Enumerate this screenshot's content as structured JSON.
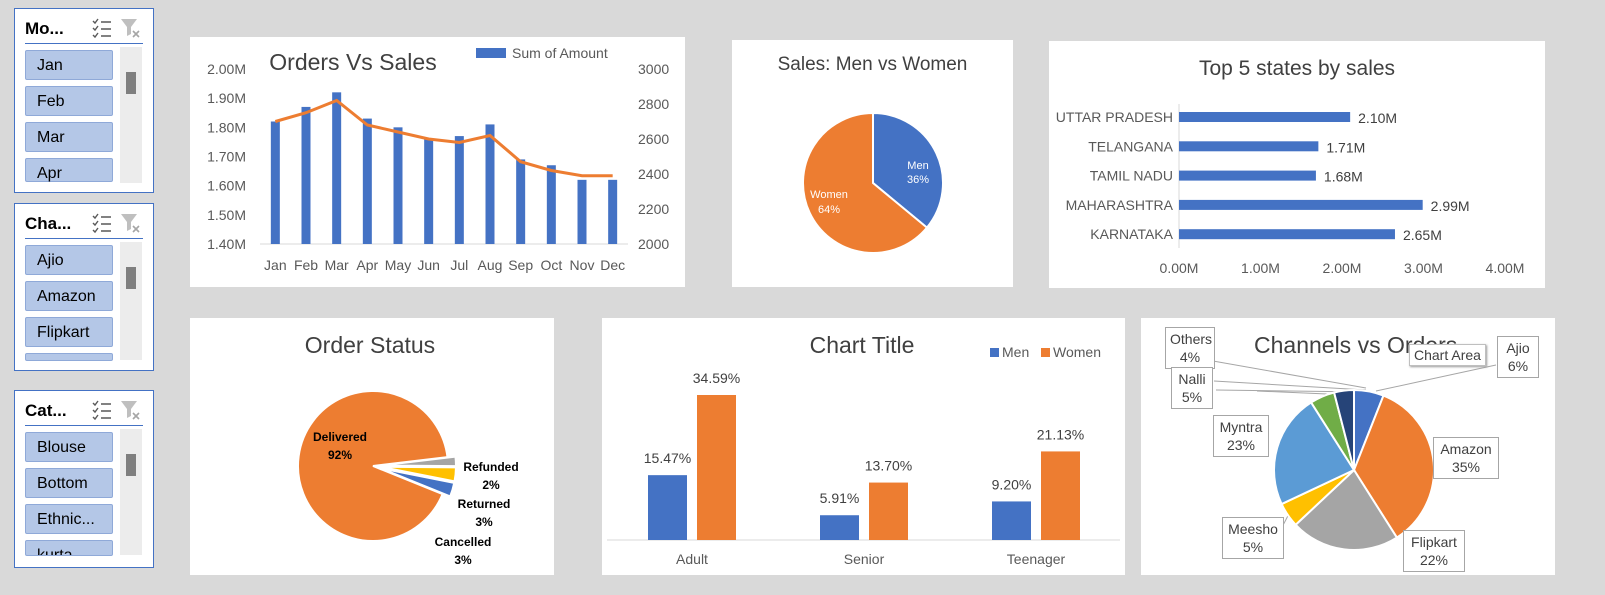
{
  "slicers": {
    "month": {
      "title": "Mo...",
      "items": [
        "Jan",
        "Feb",
        "Mar",
        "Apr"
      ]
    },
    "channel": {
      "title": "Cha...",
      "items": [
        "Ajio",
        "Amazon",
        "Flipkart",
        ""
      ]
    },
    "category": {
      "title": "Cat...",
      "items": [
        "Blouse",
        "Bottom",
        "Ethnic...",
        "kurta"
      ]
    }
  },
  "orders_vs_sales": {
    "title": "Orders Vs Sales",
    "legend": "Sum of Amount",
    "left_ticks": [
      "2.00M",
      "1.90M",
      "1.80M",
      "1.70M",
      "1.60M",
      "1.50M",
      "1.40M"
    ],
    "right_ticks": [
      "3000",
      "2800",
      "2600",
      "2400",
      "2200",
      "2000"
    ]
  },
  "men_vs_women": {
    "title": "Sales: Men vs Women",
    "men_label": "Men",
    "men_pct": "36%",
    "women_label": "Women",
    "women_pct": "64%"
  },
  "top_states": {
    "title": "Top 5 states by sales",
    "x_ticks": [
      "0.00M",
      "1.00M",
      "2.00M",
      "3.00M",
      "4.00M"
    ]
  },
  "order_status": {
    "title": "Order Status",
    "delivered": "Delivered",
    "delivered_pct": "92%",
    "refunded": "Refunded",
    "refunded_pct": "2%",
    "returned": "Returned",
    "returned_pct": "3%",
    "cancelled": "Cancelled",
    "cancelled_pct": "3%"
  },
  "age_chart": {
    "title": "Chart Title",
    "legend_men": "Men",
    "legend_women": "Women"
  },
  "channels": {
    "title": "Channels vs Orders",
    "tooltip": "Chart Area",
    "labels": {
      "others": [
        "Others",
        "4%"
      ],
      "nalli": [
        "Nalli",
        "5%"
      ],
      "myntra": [
        "Myntra",
        "23%"
      ],
      "meesho": [
        "Meesho",
        "5%"
      ],
      "flipkart": [
        "Flipkart",
        "22%"
      ],
      "amazon": [
        "Amazon",
        "35%"
      ],
      "ajio": [
        "Ajio",
        "6%"
      ]
    }
  },
  "chart_data": [
    {
      "type": "bar",
      "title": "Orders Vs Sales",
      "categories": [
        "Jan",
        "Feb",
        "Mar",
        "Apr",
        "May",
        "Jun",
        "Jul",
        "Aug",
        "Sep",
        "Oct",
        "Nov",
        "Dec"
      ],
      "series": [
        {
          "name": "Sum of Amount",
          "type": "bar",
          "axis": "left",
          "values": [
            1.82,
            1.87,
            1.92,
            1.83,
            1.8,
            1.76,
            1.77,
            1.81,
            1.69,
            1.67,
            1.62,
            1.62
          ]
        },
        {
          "type": "line",
          "axis": "right",
          "values": [
            2700,
            2750,
            2820,
            2680,
            2640,
            2600,
            2580,
            2620,
            2470,
            2420,
            2390,
            2390
          ]
        }
      ],
      "ylim_left": [
        1.4,
        2.0
      ],
      "ylim_right": [
        2000,
        3000
      ],
      "colors": {
        "bar": "#4472c4",
        "line": "#ed7d31"
      }
    },
    {
      "type": "pie",
      "title": "Sales: Men vs Women",
      "categories": [
        "Men",
        "Women"
      ],
      "values": [
        36,
        64
      ],
      "colors": [
        "#4472c4",
        "#ed7d31"
      ]
    },
    {
      "type": "bar",
      "orientation": "horizontal",
      "title": "Top 5 states by sales",
      "categories": [
        "UTTAR PRADESH",
        "TELANGANA",
        "TAMIL NADU",
        "MAHARASHTRA",
        "KARNATAKA"
      ],
      "values": [
        2.1,
        1.71,
        1.68,
        2.99,
        2.65
      ],
      "data_labels": [
        "2.10M",
        "1.71M",
        "1.68M",
        "2.99M",
        "2.65M"
      ],
      "xlim": [
        0,
        4
      ],
      "color": "#4472c4"
    },
    {
      "type": "pie",
      "title": "Order Status",
      "categories": [
        "Delivered",
        "Refunded",
        "Returned",
        "Cancelled"
      ],
      "values": [
        92,
        2,
        3,
        3
      ],
      "colors": [
        "#ed7d31",
        "#a5a5a5",
        "#ffc000",
        "#4472c4"
      ]
    },
    {
      "type": "bar",
      "title": "Chart Title",
      "categories": [
        "Adult",
        "Senior",
        "Teenager"
      ],
      "series": [
        {
          "name": "Men",
          "values": [
            15.47,
            5.91,
            9.2
          ],
          "labels": [
            "15.47%",
            "5.91%",
            "9.20%"
          ]
        },
        {
          "name": "Women",
          "values": [
            34.59,
            13.7,
            21.13
          ],
          "labels": [
            "34.59%",
            "13.70%",
            "21.13%"
          ]
        }
      ],
      "colors": [
        "#4472c4",
        "#ed7d31"
      ]
    },
    {
      "type": "pie",
      "title": "Channels vs Orders",
      "categories": [
        "Ajio",
        "Amazon",
        "Flipkart",
        "Meesho",
        "Myntra",
        "Nalli",
        "Others"
      ],
      "values": [
        6,
        35,
        22,
        5,
        23,
        5,
        4
      ],
      "colors": [
        "#4472c4",
        "#ed7d31",
        "#a5a5a5",
        "#ffc000",
        "#5b9bd5",
        "#70ad47",
        "#264478"
      ]
    }
  ]
}
